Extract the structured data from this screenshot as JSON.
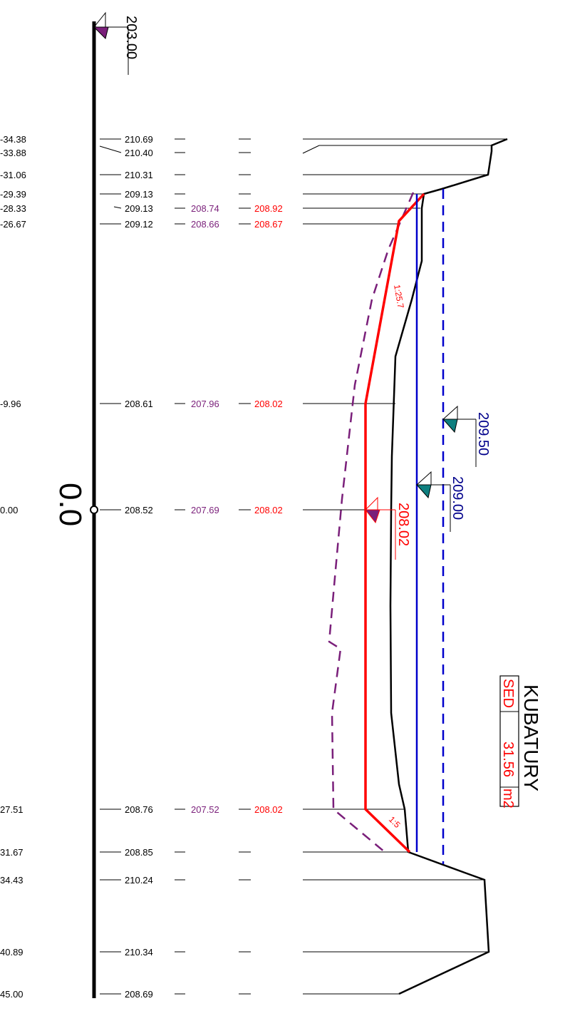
{
  "datum_marker": {
    "label": "203.00",
    "color": "#7a1f7a"
  },
  "axis_label": "0.0",
  "rows": [
    {
      "station": "-34.38",
      "terrain": "210.69",
      "design_old": "",
      "design": ""
    },
    {
      "station": "-33.88",
      "terrain": "210.40",
      "design_old": "",
      "design": ""
    },
    {
      "station": "-31.06",
      "terrain": "210.31",
      "design_old": "",
      "design": ""
    },
    {
      "station": "-29.39",
      "terrain": "209.13",
      "design_old": "",
      "design": ""
    },
    {
      "station": "-28.33",
      "terrain": "209.13",
      "design_old": "208.74",
      "design": "208.92"
    },
    {
      "station": "-26.67",
      "terrain": "209.12",
      "design_old": "208.66",
      "design": "208.67"
    },
    {
      "station": "-9.96",
      "terrain": "208.61",
      "design_old": "207.96",
      "design": "208.02"
    },
    {
      "station": "0.00",
      "terrain": "208.52",
      "design_old": "207.69",
      "design": "208.02"
    },
    {
      "station": "27.51",
      "terrain": "208.76",
      "design_old": "207.52",
      "design": "208.02"
    },
    {
      "station": "31.67",
      "terrain": "208.85",
      "design_old": "",
      "design": ""
    },
    {
      "station": "34.43",
      "terrain": "210.24",
      "design_old": "",
      "design": ""
    },
    {
      "station": "40.89",
      "terrain": "210.34",
      "design_old": "",
      "design": ""
    },
    {
      "station": "45.00",
      "terrain": "208.69",
      "design_old": "",
      "design": ""
    }
  ],
  "slopes": {
    "upper": "1:25.7",
    "lower": "1:5"
  },
  "water_levels": [
    {
      "label": "209.50",
      "color": "#00008b"
    },
    {
      "label": "209.00",
      "color": "#00008b"
    },
    {
      "label": "208.02",
      "color": "#ff0000"
    }
  ],
  "volumes": {
    "title": "KUBATURY",
    "name": "SED",
    "value": "31.56",
    "unit": "m2"
  },
  "colors": {
    "terrain": "#000000",
    "design": "#ff0000",
    "design_old": "#7a1f7a",
    "water": "#0000cc",
    "teal": "#0e7f7f"
  }
}
